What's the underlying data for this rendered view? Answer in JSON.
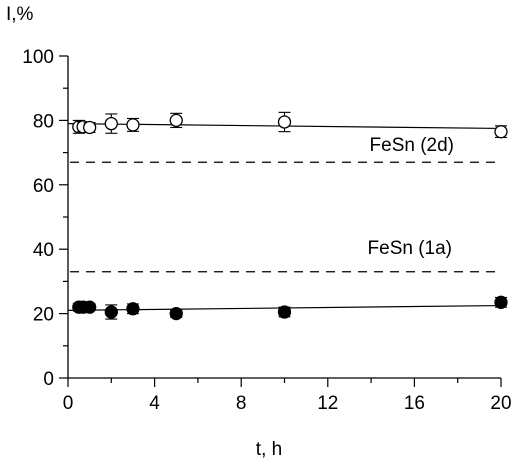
{
  "chart_data": {
    "type": "scatter",
    "title": "",
    "xlabel": "t, h",
    "ylabel": "I,%",
    "xlim": [
      0,
      20
    ],
    "ylim": [
      0,
      100
    ],
    "x_major_ticks": [
      0,
      4,
      8,
      12,
      16,
      20
    ],
    "y_major_ticks": [
      0,
      20,
      40,
      60,
      80,
      100
    ],
    "grid": false,
    "legend": "none",
    "series": [
      {
        "marker": "open-circle",
        "color": "#000000",
        "x": [
          0.5,
          0.7,
          1,
          2,
          3,
          5,
          10,
          20
        ],
        "y": [
          78,
          78,
          77.8,
          79,
          78.6,
          80,
          79.5,
          76.5
        ],
        "err": [
          2,
          1.5,
          1.5,
          3,
          2,
          2.2,
          3,
          1.8
        ],
        "fit": {
          "x": [
            0,
            20
          ],
          "y": [
            79,
            77.5
          ]
        }
      },
      {
        "marker": "filled-circle",
        "color": "#000000",
        "x": [
          0.5,
          0.7,
          1,
          2,
          3,
          5,
          10,
          20
        ],
        "y": [
          22,
          22,
          22,
          20.5,
          21.5,
          20,
          20.5,
          23.5
        ],
        "err": [
          1.2,
          1,
          1,
          2.2,
          1.5,
          1.2,
          1.5,
          1.5
        ],
        "fit": {
          "x": [
            0,
            20
          ],
          "y": [
            21,
            22.5
          ]
        }
      }
    ],
    "reference_lines": [
      {
        "y": 67,
        "label": "FeSn (2d)",
        "style": "dashed"
      },
      {
        "y": 33,
        "label": "FeSn (1a)",
        "style": "dashed"
      }
    ]
  }
}
